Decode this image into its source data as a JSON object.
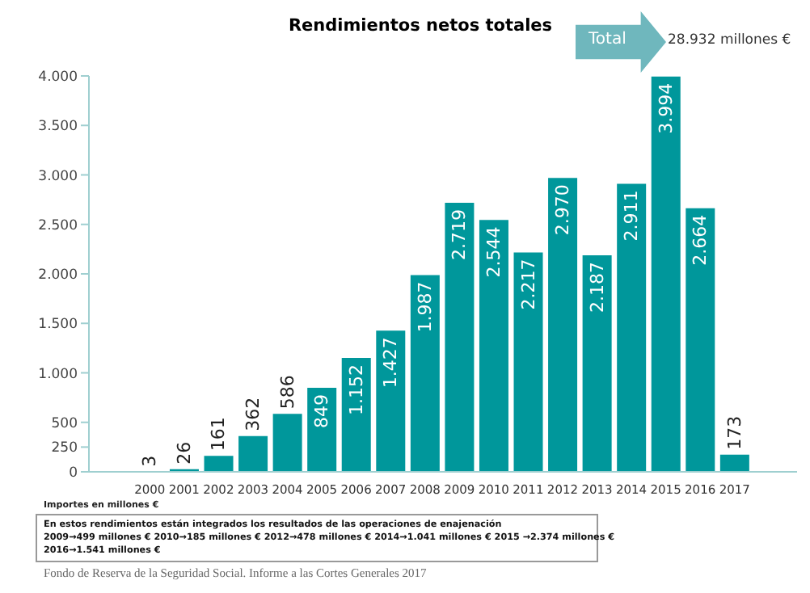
{
  "chart_data": {
    "type": "bar",
    "title": "Rendimientos netos totales",
    "categories": [
      "2000",
      "2001",
      "2002",
      "2003",
      "2004",
      "2005",
      "2006",
      "2007",
      "2008",
      "2009",
      "2010",
      "2011",
      "2012",
      "2013",
      "2014",
      "2015",
      "2016",
      "2017"
    ],
    "values": [
      3,
      26,
      161,
      362,
      586,
      849,
      1152,
      1427,
      1987,
      2719,
      2544,
      2217,
      2970,
      2187,
      2911,
      3994,
      2664,
      173
    ],
    "value_labels": [
      "3",
      "26",
      "161",
      "362",
      "586",
      "849",
      "1.152",
      "1.427",
      "1.987",
      "2.719",
      "2.544",
      "2.217",
      "2.970",
      "2.187",
      "2.911",
      "3.994",
      "2.664",
      "173"
    ],
    "color": "#00979b",
    "ylim": [
      0,
      4000
    ],
    "yticks": [
      0,
      {
        "value": 250,
        "label": "250"
      },
      {
        "value": 500,
        "label": "500"
      },
      {
        "value": 1000,
        "label": "1.000"
      },
      {
        "value": 1500,
        "label": "1.500"
      },
      {
        "value": 2000,
        "label": "2.000"
      },
      {
        "value": 2500,
        "label": "2.500"
      },
      {
        "value": 3000,
        "label": "3.000"
      },
      {
        "value": 3500,
        "label": "3.500"
      },
      {
        "value": 4000,
        "label": "4.000"
      }
    ],
    "grid": false,
    "legend": false,
    "annotations": [
      "Total",
      "28.932 millones €",
      "Importes en millones €",
      "En estos rendimientos están integrados los resultados de las operaciones de enajenación",
      "2009→499 millones €  2010→185 millones €  2012→478 millones €  2014→1.041 millones €  2015 →2.374 millones €",
      "2016→1.541 millones €",
      "Fondo de Reserva de la Seguridad Social. Informe a las Cortes Generales 2017"
    ]
  }
}
